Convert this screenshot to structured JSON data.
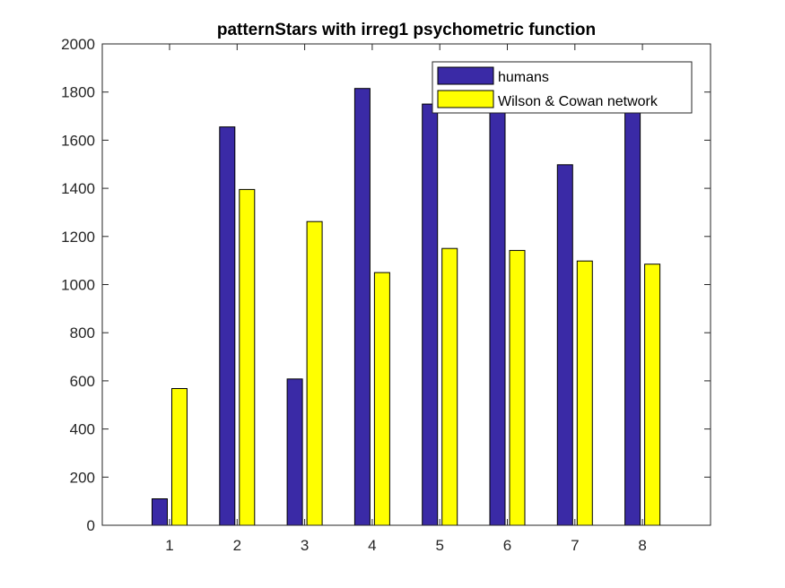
{
  "chart_data": {
    "type": "bar",
    "title": "patternStars with irreg1 psychometric function",
    "xlabel": "",
    "ylabel": "",
    "categories": [
      "1",
      "2",
      "3",
      "4",
      "5",
      "6",
      "7",
      "8"
    ],
    "ylim": [
      0,
      2000
    ],
    "yticks": [
      "0",
      "200",
      "400",
      "600",
      "800",
      "1000",
      "1200",
      "1400",
      "1600",
      "1800",
      "2000"
    ],
    "grid": false,
    "legend_position": "top-right",
    "series": [
      {
        "name": "humans",
        "color": "#3a2aa6",
        "values": [
          110,
          1655,
          608,
          1815,
          1750,
          1735,
          1498,
          1725
        ]
      },
      {
        "name": "Wilson & Cowan network",
        "color": "#ffff00",
        "values": [
          568,
          1395,
          1262,
          1050,
          1150,
          1142,
          1098,
          1085
        ]
      }
    ]
  }
}
